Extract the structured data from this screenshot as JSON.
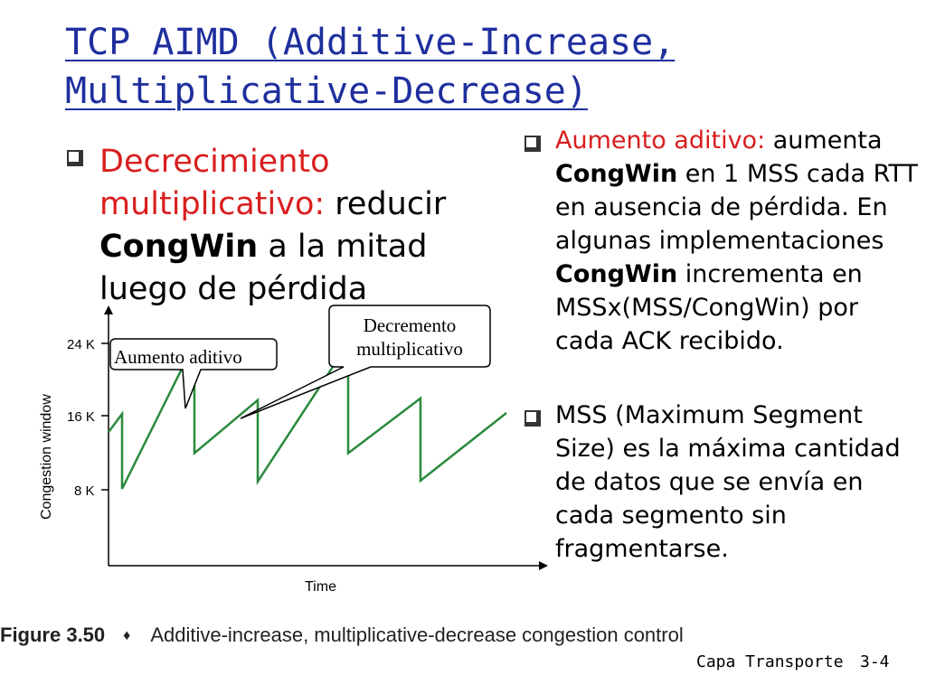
{
  "title": {
    "line1": "TCP AIMD (Additive-Increase,",
    "line2": "Multiplicative-Decrease)"
  },
  "left_bullet": {
    "red_text": "Decrecimiento multiplicativo:",
    "text_a": " reducir ",
    "bold": "CongWin",
    "text_b": " a la mitad luego de pérdida"
  },
  "right_bullets": [
    {
      "red_text": "Aumento aditivo:",
      "text_a": " aumenta ",
      "bold_a": "CongWin",
      "text_b": " en 1 MSS cada RTT en ausencia de pérdida. En algunas implementaciones ",
      "bold_b": "CongWin",
      "text_c": " incrementa en MSSx(MSS/CongWin) por cada ACK recibido."
    },
    {
      "text": "MSS (Maximum Segment Size) es la máxima cantidad de datos que se envía en cada segmento sin fragmentarse."
    }
  ],
  "chart_data": {
    "type": "line",
    "xlabel": "Time",
    "ylabel": "Congestion window",
    "y_ticks": [
      "24 K",
      "16 K",
      "8 K"
    ],
    "callouts": {
      "additive": "Aumento aditivo",
      "multiplicative_line1": "Decremento",
      "multiplicative_line2": "multiplicativo"
    },
    "series": [
      {
        "x": [
          0,
          3,
          3,
          19,
          19,
          33,
          33,
          53,
          53,
          69,
          69,
          88
        ],
        "y": [
          14.3,
          16.3,
          8.1,
          24.0,
          12.0,
          17.8,
          8.9,
          24.0,
          12.0,
          18.0,
          9.0,
          16.4
        ]
      }
    ]
  },
  "caption": {
    "figure_label": "Figure 3.50",
    "diamond": "♦",
    "text": "Additive-increase, multiplicative-decrease congestion control"
  },
  "footer": {
    "section": "Capa Transporte",
    "page": "3-4"
  }
}
